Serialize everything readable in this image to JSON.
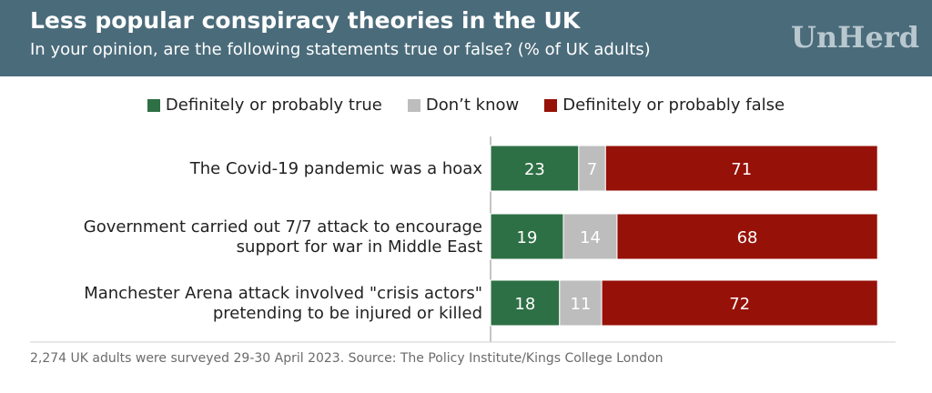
{
  "header": {
    "title": "Less popular conspiracy theories in the UK",
    "subtitle": "In your opinion, are the following statements true or false? (% of UK adults)",
    "brand": "UnHerd"
  },
  "legend": [
    {
      "label": "Definitely or probably true",
      "color": "#2e7045"
    },
    {
      "label": "Don’t know",
      "color": "#bdbdbd"
    },
    {
      "label": "Definitely or probably false",
      "color": "#961108"
    }
  ],
  "chart_data": {
    "type": "bar",
    "orientation": "horizontal",
    "stacked": true,
    "categories": [
      [
        "The Covid-19 pandemic was a hoax"
      ],
      [
        "Government carried out 7/7 attack to encourage",
        "support for war in Middle East"
      ],
      [
        "Manchester Arena attack involved \"crisis actors\"",
        "pretending to be injured or killed"
      ]
    ],
    "series": [
      {
        "name": "Definitely or probably true",
        "color": "#2e7045",
        "values": [
          23,
          19,
          18
        ]
      },
      {
        "name": "Don’t know",
        "color": "#bdbdbd",
        "values": [
          7,
          14,
          11
        ]
      },
      {
        "name": "Definitely or probably false",
        "color": "#961108",
        "values": [
          71,
          68,
          72
        ]
      }
    ],
    "xlim": [
      0,
      100
    ],
    "legend_position": "top",
    "grid": false
  },
  "footnote": "2,274 UK adults were surveyed 29-30 April 2023. Source: The Policy Institute/Kings College London"
}
